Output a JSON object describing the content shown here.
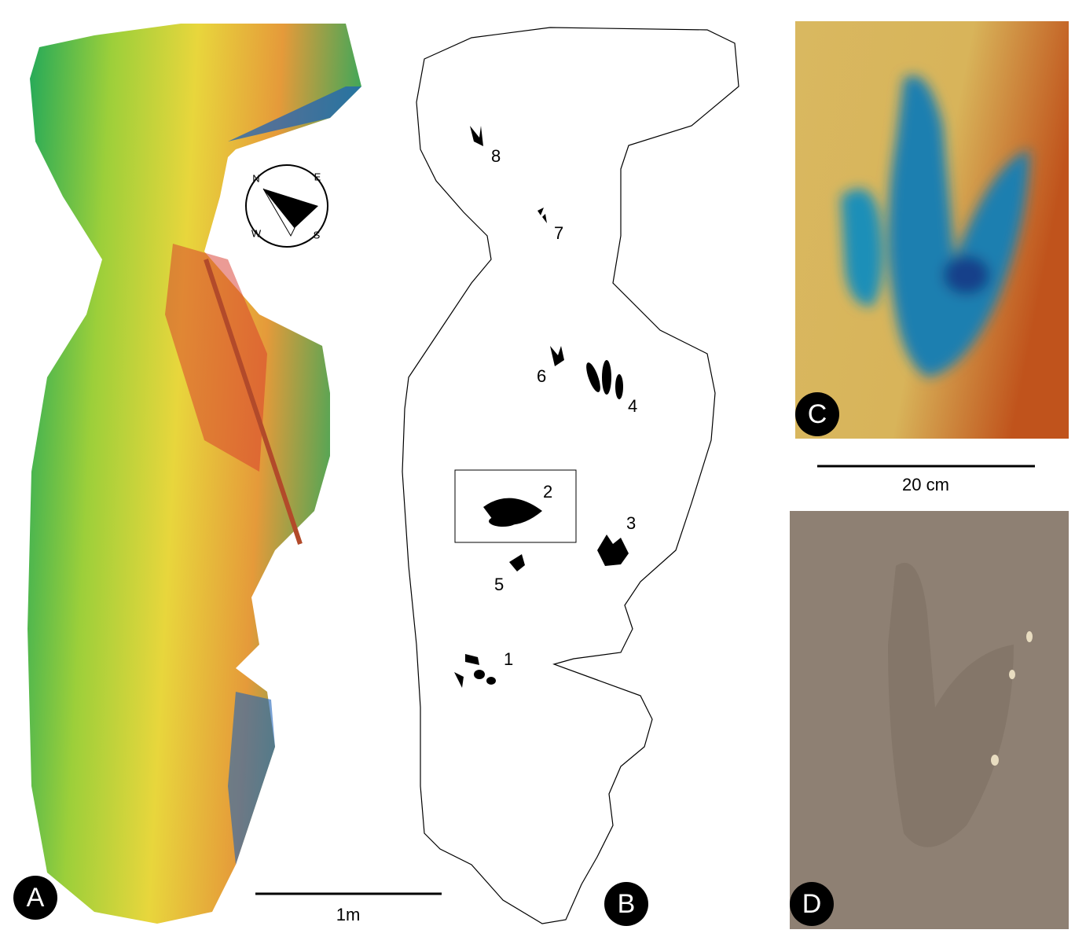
{
  "panels": [
    {
      "label": "A",
      "scale_bar": "1m",
      "compass": [
        "N",
        "E",
        "S",
        "W"
      ]
    },
    {
      "label": "B",
      "tracks": [
        "1",
        "2",
        "3",
        "4",
        "5",
        "6",
        "7",
        "8"
      ]
    },
    {
      "label": "C",
      "scale_bar": "20 cm"
    },
    {
      "label": "D"
    }
  ]
}
